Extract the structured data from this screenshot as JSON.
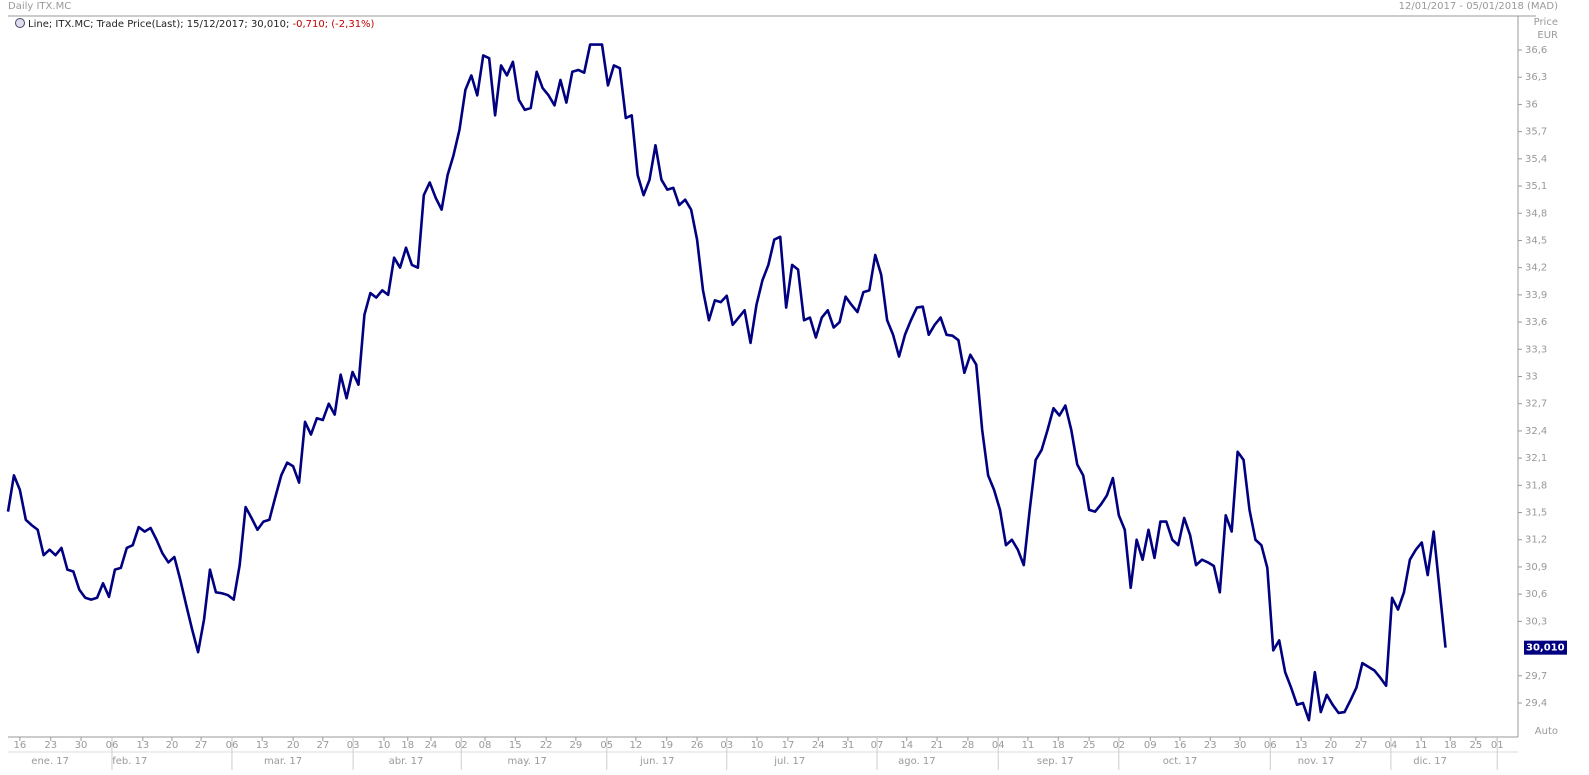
{
  "chart_data": {
    "type": "line",
    "title": "Daily ITX.MC",
    "subtitle": "12/01/2017 - 05/01/2018 (MAD)",
    "legend_text": "Line; ITX.MC; Trade Price(Last);  15/12/2017; 30,010; ",
    "legend_change": "-0,710; (-2,31%)",
    "y_label": "Price",
    "y_unit": "EUR",
    "y_scale_label": "Auto",
    "last_price": {
      "value": 30.01,
      "label": "30,010"
    },
    "series": [
      {
        "color": "#000080",
        "values": [
          31.51,
          31.91,
          31.75,
          31.42,
          31.36,
          31.31,
          31.03,
          31.09,
          31.03,
          31.11,
          30.87,
          30.85,
          30.65,
          30.56,
          30.54,
          30.56,
          30.72,
          30.57,
          30.87,
          30.89,
          31.11,
          31.14,
          31.34,
          31.29,
          31.33,
          31.2,
          31.05,
          30.95,
          31.01,
          30.76,
          30.48,
          30.21,
          29.96,
          30.32,
          30.87,
          30.62,
          30.61,
          30.59,
          30.54,
          30.92,
          31.56,
          31.44,
          31.31,
          31.4,
          31.42,
          31.67,
          31.91,
          32.05,
          32.01,
          31.83,
          32.5,
          32.36,
          32.54,
          32.52,
          32.7,
          32.58,
          33.02,
          32.76,
          33.05,
          32.91,
          33.68,
          33.92,
          33.87,
          33.95,
          33.9,
          34.31,
          34.2,
          34.42,
          34.23,
          34.2,
          35.0,
          35.14,
          34.97,
          34.84,
          35.22,
          35.44,
          35.72,
          36.16,
          36.32,
          36.1,
          36.54,
          36.51,
          35.88,
          36.43,
          36.32,
          36.47,
          36.05,
          35.94,
          35.96,
          36.36,
          36.18,
          36.1,
          35.99,
          36.27,
          36.02,
          36.36,
          36.38,
          36.35,
          36.66,
          36.66,
          36.66,
          36.21,
          36.43,
          36.4,
          35.85,
          35.88,
          35.22,
          35.0,
          35.17,
          35.55,
          35.17,
          35.06,
          35.08,
          34.89,
          34.95,
          34.84,
          34.51,
          33.95,
          33.62,
          33.84,
          33.82,
          33.89,
          33.57,
          33.65,
          33.73,
          33.37,
          33.79,
          34.06,
          34.23,
          34.51,
          34.54,
          33.76,
          34.23,
          34.18,
          33.62,
          33.65,
          33.43,
          33.65,
          33.73,
          33.54,
          33.6,
          33.88,
          33.79,
          33.71,
          33.93,
          33.95,
          34.34,
          34.12,
          33.62,
          33.46,
          33.22,
          33.46,
          33.62,
          33.76,
          33.77,
          33.46,
          33.57,
          33.65,
          33.46,
          33.45,
          33.4,
          33.04,
          33.24,
          33.13,
          32.41,
          31.91,
          31.75,
          31.53,
          31.14,
          31.2,
          31.09,
          30.92,
          31.53,
          32.08,
          32.19,
          32.41,
          32.65,
          32.57,
          32.68,
          32.41,
          32.03,
          31.91,
          31.53,
          31.51,
          31.59,
          31.69,
          31.88,
          31.47,
          31.31,
          30.67,
          31.2,
          30.98,
          31.31,
          31.0,
          31.4,
          31.4,
          31.2,
          31.14,
          31.44,
          31.25,
          30.92,
          30.98,
          30.95,
          30.91,
          30.62,
          31.47,
          31.29,
          32.17,
          32.08,
          31.53,
          31.2,
          31.14,
          30.89,
          29.98,
          30.09,
          29.74,
          29.57,
          29.38,
          29.4,
          29.21,
          29.74,
          29.3,
          29.49,
          29.38,
          29.29,
          29.3,
          29.43,
          29.57,
          29.84,
          29.8,
          29.76,
          29.68,
          29.59,
          30.56,
          30.43,
          30.62,
          30.98,
          31.09,
          31.17,
          30.81,
          31.29,
          30.65,
          30.01
        ]
      }
    ],
    "x": [
      0,
      1,
      2,
      3,
      4,
      5,
      6,
      7,
      8,
      9,
      10,
      11,
      12,
      13,
      14,
      15,
      16,
      17,
      18,
      19,
      20,
      21,
      22,
      23,
      24,
      25,
      26,
      27,
      28,
      29,
      30,
      31,
      32,
      33,
      34,
      35,
      36,
      37,
      38,
      39,
      40,
      41,
      42,
      43,
      44,
      45,
      46,
      47,
      48,
      49,
      50,
      51,
      52,
      53,
      54,
      55,
      56,
      57,
      58,
      59,
      60,
      61,
      62,
      63,
      64,
      65,
      66,
      67,
      68,
      69,
      70,
      71,
      72,
      73,
      74,
      75,
      76,
      77,
      78,
      79,
      80,
      81,
      82,
      83,
      84,
      85,
      86,
      87,
      88,
      89,
      90,
      91,
      92,
      93,
      94,
      95,
      96,
      97,
      98,
      99,
      100,
      101,
      102,
      103,
      104,
      105,
      106,
      107,
      108,
      109,
      110,
      111,
      112,
      113,
      114,
      115,
      116,
      117,
      118,
      119,
      120,
      121,
      122,
      123,
      124,
      125,
      126,
      127,
      128,
      129,
      130,
      131,
      132,
      133,
      134,
      135,
      136,
      137,
      138,
      139,
      140,
      141,
      142,
      143,
      144,
      145,
      146,
      147,
      148,
      149,
      150,
      151,
      152,
      153,
      154,
      155,
      156,
      157,
      158,
      159,
      160,
      161,
      162,
      163,
      164,
      165,
      166,
      167,
      168,
      169,
      170,
      171,
      172,
      173,
      174,
      175,
      176,
      177,
      178,
      179,
      180,
      181,
      182,
      183,
      184,
      185,
      186,
      187,
      188,
      189,
      190,
      191,
      192,
      193,
      194,
      195,
      196,
      197,
      198,
      199,
      200,
      201,
      202,
      203,
      204,
      205,
      206,
      207,
      208,
      209,
      210,
      211,
      212,
      213,
      214,
      215,
      216,
      217,
      218,
      219,
      220,
      221,
      222,
      223,
      224,
      225,
      226,
      227,
      228,
      229,
      230,
      231,
      232,
      233,
      234,
      235,
      236,
      237,
      238,
      239,
      240,
      241,
      242
    ],
    "xlim": [
      0,
      254.2
    ],
    "ylim": [
      29.047,
      36.953
    ],
    "xticks": [
      {
        "value": 2.0,
        "label": "16"
      },
      {
        "value": 7.2,
        "label": "23"
      },
      {
        "value": 12.3,
        "label": "30"
      },
      {
        "value": 17.5,
        "label": "06"
      },
      {
        "value": 22.7,
        "label": "13"
      },
      {
        "value": 27.6,
        "label": "20"
      },
      {
        "value": 32.5,
        "label": "27"
      },
      {
        "value": 37.7,
        "label": "06"
      },
      {
        "value": 42.8,
        "label": "13"
      },
      {
        "value": 48.0,
        "label": "20"
      },
      {
        "value": 53.0,
        "label": "27"
      },
      {
        "value": 58.1,
        "label": "03"
      },
      {
        "value": 63.3,
        "label": "10"
      },
      {
        "value": 67.3,
        "label": "18"
      },
      {
        "value": 71.2,
        "label": "24"
      },
      {
        "value": 76.3,
        "label": "02"
      },
      {
        "value": 80.3,
        "label": "08"
      },
      {
        "value": 85.4,
        "label": "15"
      },
      {
        "value": 90.6,
        "label": "22"
      },
      {
        "value": 95.6,
        "label": "29"
      },
      {
        "value": 100.8,
        "label": "05"
      },
      {
        "value": 105.7,
        "label": "12"
      },
      {
        "value": 110.9,
        "label": "19"
      },
      {
        "value": 116.0,
        "label": "26"
      },
      {
        "value": 121.0,
        "label": "03"
      },
      {
        "value": 126.1,
        "label": "10"
      },
      {
        "value": 131.3,
        "label": "17"
      },
      {
        "value": 136.4,
        "label": "24"
      },
      {
        "value": 141.4,
        "label": "31"
      },
      {
        "value": 146.3,
        "label": "07"
      },
      {
        "value": 151.3,
        "label": "14"
      },
      {
        "value": 156.4,
        "label": "21"
      },
      {
        "value": 161.6,
        "label": "28"
      },
      {
        "value": 166.7,
        "label": "04"
      },
      {
        "value": 171.7,
        "label": "11"
      },
      {
        "value": 176.8,
        "label": "18"
      },
      {
        "value": 182.0,
        "label": "25"
      },
      {
        "value": 187.0,
        "label": "02"
      },
      {
        "value": 192.3,
        "label": "09"
      },
      {
        "value": 197.3,
        "label": "16"
      },
      {
        "value": 202.4,
        "label": "23"
      },
      {
        "value": 207.4,
        "label": "30"
      },
      {
        "value": 212.5,
        "label": "06"
      },
      {
        "value": 217.7,
        "label": "13"
      },
      {
        "value": 222.7,
        "label": "20"
      },
      {
        "value": 227.8,
        "label": "27"
      },
      {
        "value": 232.8,
        "label": "04"
      },
      {
        "value": 237.9,
        "label": "11"
      },
      {
        "value": 242.8,
        "label": "18"
      },
      {
        "value": 247.1,
        "label": "25"
      },
      {
        "value": 250.7,
        "label": "01"
      }
    ],
    "month_labels": [
      {
        "value": 7.1,
        "label": "ene. 17"
      },
      {
        "value": 20.5,
        "label": "feb. 17"
      },
      {
        "value": 46.3,
        "label": "mar. 17"
      },
      {
        "value": 67.0,
        "label": "abr. 17"
      },
      {
        "value": 87.4,
        "label": "may. 17"
      },
      {
        "value": 109.3,
        "label": "jun. 17"
      },
      {
        "value": 131.6,
        "label": "jul. 17"
      },
      {
        "value": 153.0,
        "label": "ago. 17"
      },
      {
        "value": 176.3,
        "label": "sep. 17"
      },
      {
        "value": 197.3,
        "label": "oct. 17"
      },
      {
        "value": 220.2,
        "label": "nov. 17"
      },
      {
        "value": 239.4,
        "label": "dic. 17"
      }
    ],
    "yticks": [
      {
        "value": 36.6,
        "label": "36,6"
      },
      {
        "value": 36.3,
        "label": "36,3"
      },
      36,
      {
        "value": 35.7,
        "label": "35,7"
      },
      {
        "value": 35.4,
        "label": "35,4"
      },
      {
        "value": 35.1,
        "label": "35,1"
      },
      {
        "value": 34.8,
        "label": "34,8"
      },
      {
        "value": 34.5,
        "label": "34,5"
      },
      {
        "value": 34.2,
        "label": "34,2"
      },
      {
        "value": 33.9,
        "label": "33,9"
      },
      {
        "value": 33.6,
        "label": "33,6"
      },
      {
        "value": 33.3,
        "label": "33,3"
      },
      33,
      {
        "value": 32.7,
        "label": "32,7"
      },
      {
        "value": 32.4,
        "label": "32,4"
      },
      {
        "value": 32.1,
        "label": "32,1"
      },
      {
        "value": 31.8,
        "label": "31,8"
      },
      {
        "value": 31.5,
        "label": "31,5"
      },
      {
        "value": 31.2,
        "label": "31,2"
      },
      {
        "value": 30.9,
        "label": "30,9"
      },
      {
        "value": 30.6,
        "label": "30,6"
      },
      {
        "value": 30.3,
        "label": "30,3"
      },
      {
        "value": 29.7,
        "label": "29,7"
      },
      {
        "value": 29.4,
        "label": "29,4"
      }
    ]
  }
}
